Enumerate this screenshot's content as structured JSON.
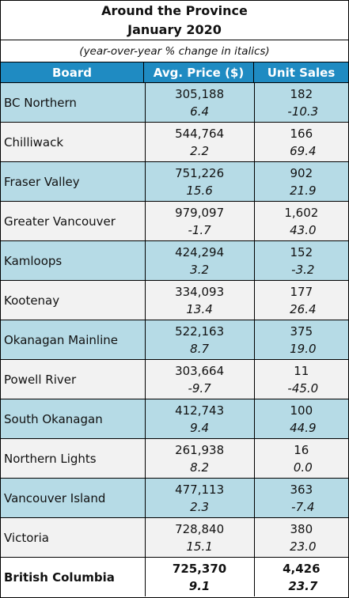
{
  "table": {
    "title_line1": "Around the Province",
    "title_line2": "January 2020",
    "subtitle": "(year-over-year % change in italics)",
    "headers": {
      "board": "Board",
      "price": "Avg. Price ($)",
      "sales": "Unit Sales"
    },
    "rows": [
      {
        "board": "BC Northern",
        "price": "305,188",
        "price_pct": "6.4",
        "sales": "182",
        "sales_pct": "-10.3"
      },
      {
        "board": "Chilliwack",
        "price": "544,764",
        "price_pct": "2.2",
        "sales": "166",
        "sales_pct": "69.4"
      },
      {
        "board": "Fraser Valley",
        "price": "751,226",
        "price_pct": "15.6",
        "sales": "902",
        "sales_pct": "21.9"
      },
      {
        "board": "Greater Vancouver",
        "price": "979,097",
        "price_pct": "-1.7",
        "sales": "1,602",
        "sales_pct": "43.0"
      },
      {
        "board": "Kamloops",
        "price": "424,294",
        "price_pct": "3.2",
        "sales": "152",
        "sales_pct": "-3.2"
      },
      {
        "board": "Kootenay",
        "price": "334,093",
        "price_pct": "13.4",
        "sales": "177",
        "sales_pct": "26.4"
      },
      {
        "board": "Okanagan Mainline",
        "price": "522,163",
        "price_pct": "8.7",
        "sales": "375",
        "sales_pct": "19.0"
      },
      {
        "board": "Powell River",
        "price": "303,664",
        "price_pct": "-9.7",
        "sales": "11",
        "sales_pct": "-45.0"
      },
      {
        "board": "South Okanagan",
        "price": "412,743",
        "price_pct": "9.4",
        "sales": "100",
        "sales_pct": "44.9"
      },
      {
        "board": "Northern Lights",
        "price": "261,938",
        "price_pct": "8.2",
        "sales": "16",
        "sales_pct": "0.0"
      },
      {
        "board": "Vancouver Island",
        "price": "477,113",
        "price_pct": "2.3",
        "sales": "363",
        "sales_pct": "-7.4"
      },
      {
        "board": "Victoria",
        "price": "728,840",
        "price_pct": "15.1",
        "sales": "380",
        "sales_pct": "23.0"
      }
    ],
    "total": {
      "board": "British Columbia",
      "price": "725,370",
      "price_pct": "9.1",
      "sales": "4,426",
      "sales_pct": "23.7"
    }
  },
  "colors": {
    "header_bg": "#1f8bc2",
    "row_alt_bg": "#b6dbe6",
    "row_plain_bg": "#f2f2f2"
  }
}
